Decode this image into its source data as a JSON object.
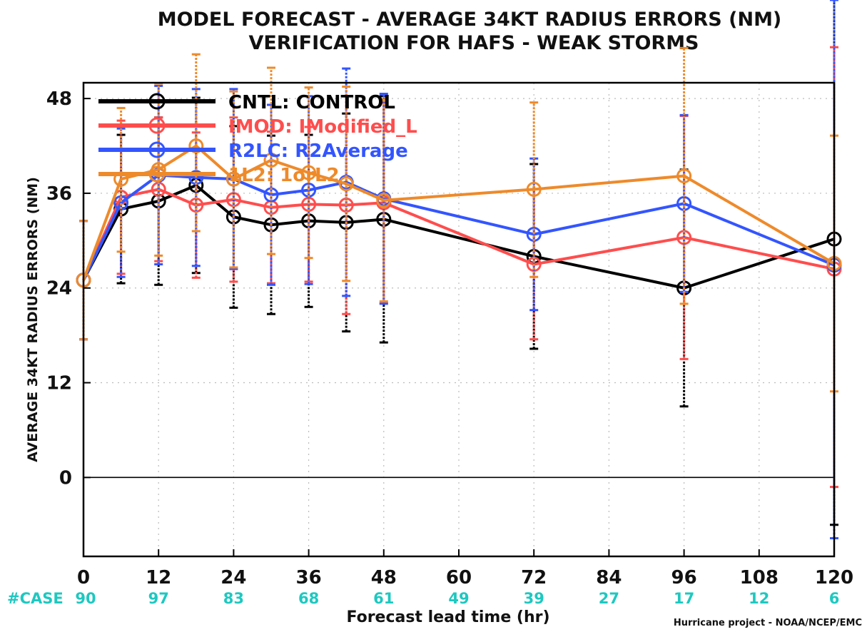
{
  "chart_data": {
    "type": "line",
    "title": "MODEL FORECAST - AVERAGE 34KT RADIUS ERRORS (NM)",
    "subtitle": "VERIFICATION FOR HAFS - WEAK STORMS",
    "xlabel": "Forecast lead time (hr)",
    "ylabel": "AVERAGE 34KT RADIUS ERRORS (NM)",
    "xlim": [
      0,
      120
    ],
    "ylim": [
      -10,
      50
    ],
    "x_ticks": [
      0,
      12,
      24,
      36,
      48,
      60,
      72,
      84,
      96,
      108,
      120
    ],
    "y_ticks": [
      0,
      12,
      24,
      36,
      48
    ],
    "grid": true,
    "legend_position": "top-left",
    "case_label": "#CASE",
    "case_hours": [
      0,
      12,
      24,
      36,
      48,
      60,
      72,
      84,
      96,
      108,
      120
    ],
    "case_counts": [
      90,
      97,
      83,
      68,
      61,
      49,
      39,
      27,
      17,
      12,
      6
    ],
    "credit": "Hurricane project - NOAA/NCEP/EMC",
    "x": [
      0,
      6,
      12,
      18,
      24,
      30,
      36,
      42,
      48,
      72,
      96,
      120
    ],
    "series": [
      {
        "name": "CNTL: CONTROL",
        "color": "#000000",
        "values": [
          25,
          34,
          35,
          37,
          33,
          32,
          32.5,
          32.3,
          32.7,
          28,
          24,
          30.2
        ],
        "err_low": [
          17.5,
          24.6,
          24.4,
          25.9,
          21.5,
          20.7,
          21.6,
          18.5,
          17.1,
          16.3,
          9,
          -6
        ],
        "err_high": [
          32.5,
          43.4,
          45.6,
          48.1,
          44.5,
          43.3,
          43.4,
          46.1,
          48.3,
          39.7,
          39,
          66.4
        ]
      },
      {
        "name": "IMOD: IModified_L",
        "color": "#ff4d4d",
        "values": [
          25,
          35.5,
          36.5,
          34.5,
          35.2,
          34.2,
          34.6,
          34.5,
          34.8,
          27,
          30.4,
          26.4
        ],
        "err_low": [
          17.5,
          25.8,
          27.4,
          25.3,
          24.8,
          24.6,
          24.8,
          20.7,
          22.1,
          17.5,
          15,
          -1.2
        ],
        "err_high": [
          32.5,
          45.2,
          45.6,
          43.7,
          45.6,
          43.8,
          44.4,
          48.3,
          47.5,
          36.5,
          45.8,
          54.5
        ]
      },
      {
        "name": "R2LC: R2Average",
        "color": "#3355ff",
        "values": [
          25,
          34.8,
          38.3,
          38,
          37.8,
          35.8,
          36.4,
          37.4,
          35.3,
          30.8,
          34.7,
          26.9
        ],
        "err_low": [
          17.5,
          25.4,
          27,
          26.8,
          26.4,
          24.4,
          24.5,
          23,
          22,
          21.2,
          23.5,
          -7.7
        ],
        "err_high": [
          32.5,
          44.2,
          49.6,
          49.2,
          49.2,
          47.2,
          48.3,
          51.8,
          48.6,
          40.4,
          45.9,
          61.5
        ]
      },
      {
        "name": "1L2: 1orL2",
        "color": "#ee8a2a",
        "values": [
          25,
          37.8,
          39,
          42,
          37.8,
          40.2,
          38.6,
          37.2,
          35.1,
          36.5,
          38.2,
          27.1
        ],
        "err_low": [
          17.5,
          28.6,
          28.1,
          31.2,
          26.6,
          28.3,
          27.8,
          24.9,
          22.3,
          25.4,
          22,
          10.9
        ],
        "err_high": [
          32.5,
          46.8,
          49.9,
          53.6,
          48.9,
          51.9,
          49.4,
          49.5,
          47.9,
          47.5,
          54.4,
          43.3
        ]
      }
    ]
  }
}
